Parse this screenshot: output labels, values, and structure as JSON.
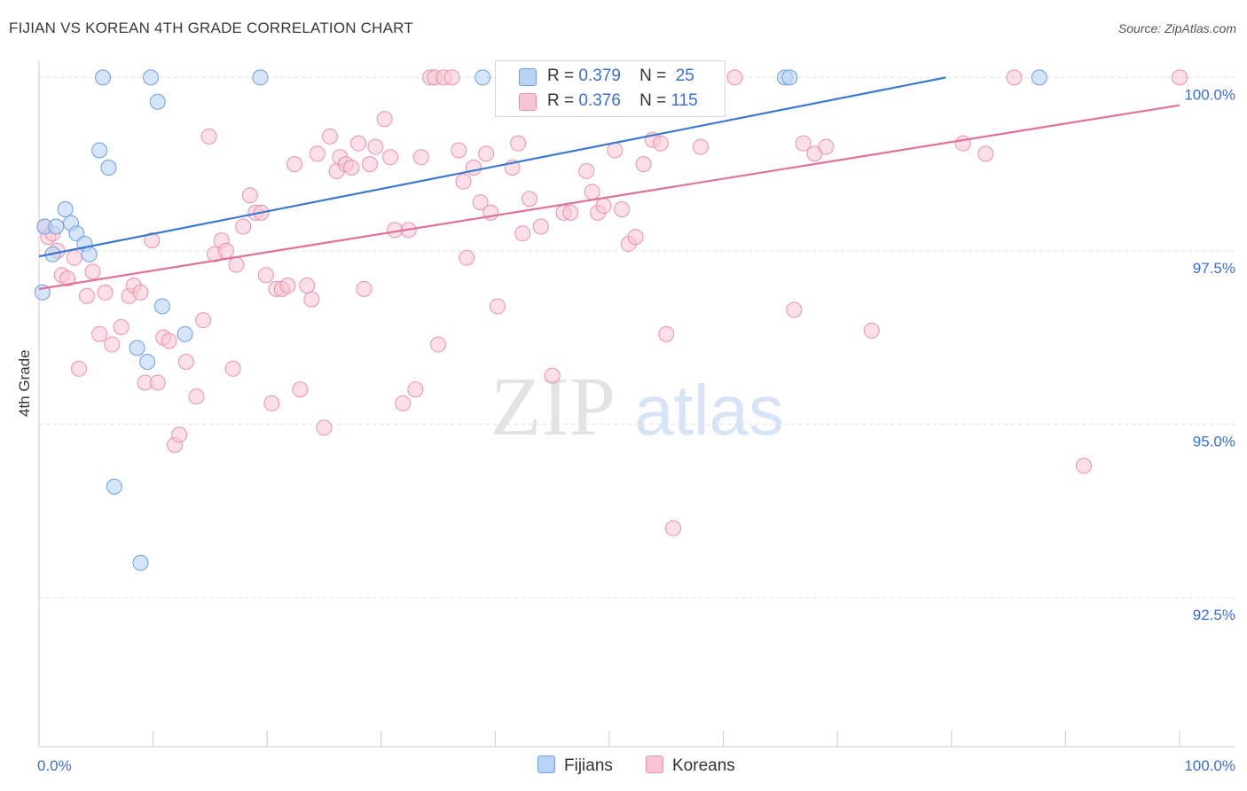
{
  "title": "FIJIAN VS KOREAN 4TH GRADE CORRELATION CHART",
  "source": "Source: ZipAtlas.com",
  "watermark": {
    "zip": "ZIP",
    "atlas": "atlas"
  },
  "legend": {
    "rows": [
      {
        "r_label": "R =",
        "r_value": "0.379",
        "n_label": "N =",
        "n_value": "25"
      },
      {
        "r_label": "R =",
        "r_value": "0.376",
        "n_label": "N =",
        "n_value": "115"
      }
    ]
  },
  "bottom_legend": {
    "fijians": "Fijians",
    "koreans": "Koreans"
  },
  "colors": {
    "fijian_fill": "#b9d3f6",
    "fijian_stroke": "#6e9fdc",
    "fijian_line": "#3b78d0",
    "korean_fill": "#f9c4d4",
    "korean_stroke": "#e891ae",
    "korean_line": "#e0729a",
    "axis_text": "#3b6fd3",
    "grid": "#e3e3e3"
  },
  "chart_data": {
    "type": "scatter",
    "title": "FIJIAN VS KOREAN 4TH GRADE CORRELATION CHART",
    "xlabel": "",
    "ylabel": "4th Grade",
    "xlim": [
      0,
      100
    ],
    "ylim": [
      90.35,
      100.35
    ],
    "x_tick_labels": [
      "0.0%",
      "100.0%"
    ],
    "y_ticks": [
      100.0,
      97.5,
      95.0,
      92.5
    ],
    "y_tick_labels": [
      "100.0%",
      "97.5%",
      "95.0%",
      "92.5%"
    ],
    "grid": true,
    "series": [
      {
        "name": "Fijians",
        "R": 0.379,
        "N": 25,
        "trend": {
          "x0": 0,
          "y0": 97.42,
          "x1": 79.5,
          "y1": 100.0
        },
        "points": [
          [
            0.3,
            96.9
          ],
          [
            0.5,
            97.85
          ],
          [
            1.2,
            97.45
          ],
          [
            1.5,
            97.85
          ],
          [
            2.3,
            98.1
          ],
          [
            2.8,
            97.9
          ],
          [
            3.3,
            97.75
          ],
          [
            4.0,
            97.6
          ],
          [
            4.4,
            97.45
          ],
          [
            5.3,
            98.95
          ],
          [
            5.6,
            100.0
          ],
          [
            6.1,
            98.7
          ],
          [
            8.6,
            96.1
          ],
          [
            8.9,
            93.0
          ],
          [
            9.5,
            95.9
          ],
          [
            9.8,
            100.0
          ],
          [
            10.4,
            99.65
          ],
          [
            10.8,
            96.7
          ],
          [
            12.8,
            96.3
          ],
          [
            6.6,
            94.1
          ],
          [
            19.4,
            100.0
          ],
          [
            38.9,
            100.0
          ],
          [
            65.4,
            100.0
          ],
          [
            65.8,
            100.0
          ],
          [
            87.7,
            100.0
          ]
        ]
      },
      {
        "name": "Koreans",
        "R": 0.376,
        "N": 115,
        "trend": {
          "x0": 0,
          "y0": 96.95,
          "x1": 100,
          "y1": 99.6
        },
        "points": [
          [
            0.5,
            97.85
          ],
          [
            0.8,
            97.7
          ],
          [
            1.2,
            97.75
          ],
          [
            1.6,
            97.5
          ],
          [
            2.0,
            97.15
          ],
          [
            2.5,
            97.1
          ],
          [
            3.1,
            97.4
          ],
          [
            3.5,
            95.8
          ],
          [
            4.2,
            96.85
          ],
          [
            4.7,
            97.2
          ],
          [
            5.3,
            96.3
          ],
          [
            5.8,
            96.9
          ],
          [
            6.4,
            96.15
          ],
          [
            7.2,
            96.4
          ],
          [
            7.9,
            96.85
          ],
          [
            8.3,
            97.0
          ],
          [
            8.9,
            96.9
          ],
          [
            9.3,
            95.6
          ],
          [
            9.9,
            97.65
          ],
          [
            10.4,
            95.6
          ],
          [
            10.9,
            96.25
          ],
          [
            11.4,
            96.2
          ],
          [
            11.9,
            94.7
          ],
          [
            12.3,
            94.85
          ],
          [
            12.9,
            95.9
          ],
          [
            13.8,
            95.4
          ],
          [
            14.4,
            96.5
          ],
          [
            14.9,
            99.15
          ],
          [
            15.4,
            97.45
          ],
          [
            16.0,
            97.65
          ],
          [
            16.4,
            97.5
          ],
          [
            17.0,
            95.8
          ],
          [
            17.3,
            97.3
          ],
          [
            17.9,
            97.85
          ],
          [
            18.5,
            98.3
          ],
          [
            19.0,
            98.05
          ],
          [
            19.5,
            98.05
          ],
          [
            19.9,
            97.15
          ],
          [
            20.4,
            95.3
          ],
          [
            20.8,
            96.95
          ],
          [
            21.3,
            96.95
          ],
          [
            21.8,
            97.0
          ],
          [
            22.4,
            98.75
          ],
          [
            22.9,
            95.5
          ],
          [
            23.5,
            97.0
          ],
          [
            23.9,
            96.8
          ],
          [
            24.4,
            98.9
          ],
          [
            25.0,
            94.95
          ],
          [
            25.5,
            99.15
          ],
          [
            26.1,
            98.65
          ],
          [
            26.4,
            98.85
          ],
          [
            26.9,
            98.75
          ],
          [
            27.4,
            98.7
          ],
          [
            28.0,
            99.05
          ],
          [
            28.5,
            96.95
          ],
          [
            29.0,
            98.75
          ],
          [
            29.5,
            99.0
          ],
          [
            30.3,
            99.4
          ],
          [
            30.8,
            98.85
          ],
          [
            31.2,
            97.8
          ],
          [
            31.9,
            95.3
          ],
          [
            32.4,
            97.8
          ],
          [
            33.0,
            95.5
          ],
          [
            33.5,
            98.85
          ],
          [
            34.3,
            100.0
          ],
          [
            34.7,
            100.0
          ],
          [
            35.0,
            96.15
          ],
          [
            35.5,
            100.0
          ],
          [
            36.2,
            100.0
          ],
          [
            36.8,
            98.95
          ],
          [
            37.2,
            98.5
          ],
          [
            37.5,
            97.4
          ],
          [
            38.1,
            98.7
          ],
          [
            38.7,
            98.2
          ],
          [
            39.2,
            98.9
          ],
          [
            39.6,
            98.05
          ],
          [
            40.2,
            96.7
          ],
          [
            40.7,
            100.0
          ],
          [
            41.5,
            98.7
          ],
          [
            42.0,
            99.05
          ],
          [
            42.4,
            97.75
          ],
          [
            43.0,
            98.25
          ],
          [
            44.0,
            97.85
          ],
          [
            45.0,
            95.7
          ],
          [
            46.0,
            98.05
          ],
          [
            46.6,
            98.05
          ],
          [
            47.4,
            100.0
          ],
          [
            48.0,
            98.65
          ],
          [
            48.5,
            98.35
          ],
          [
            49.0,
            98.05
          ],
          [
            49.5,
            98.15
          ],
          [
            50.0,
            100.0
          ],
          [
            50.5,
            98.95
          ],
          [
            51.1,
            98.1
          ],
          [
            51.7,
            97.6
          ],
          [
            52.3,
            97.7
          ],
          [
            53.0,
            98.75
          ],
          [
            53.8,
            99.1
          ],
          [
            54.5,
            99.05
          ],
          [
            55.0,
            96.3
          ],
          [
            55.6,
            93.5
          ],
          [
            56.6,
            100.0
          ],
          [
            66.2,
            96.65
          ],
          [
            67.0,
            99.05
          ],
          [
            68.0,
            98.9
          ],
          [
            69.0,
            99.0
          ],
          [
            81.0,
            99.05
          ],
          [
            83.0,
            98.9
          ],
          [
            85.5,
            100.0
          ],
          [
            91.6,
            94.4
          ],
          [
            100.0,
            100.0
          ],
          [
            73.0,
            96.35
          ],
          [
            61.0,
            100.0
          ],
          [
            58.0,
            99.0
          ],
          [
            57.5,
            100.0
          ]
        ]
      }
    ]
  }
}
